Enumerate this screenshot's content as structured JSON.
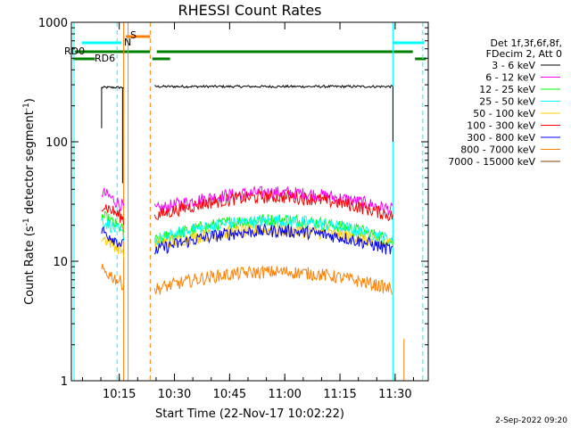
{
  "chart_data": {
    "type": "line",
    "title": "RHESSI Count Rates",
    "xlabel": "Start Time (22-Nov-17 10:02:22)",
    "ylabel_main": "Count Rate (s",
    "ylabel_sup1": "-1",
    "ylabel_mid": " detector segment",
    "ylabel_sup2": "-1",
    "ylabel_end": ")",
    "y_scale": "log",
    "ylim": [
      1,
      1000
    ],
    "xlim_minutes": [
      10.033,
      11.65
    ],
    "x_ticks": [
      {
        "label": "10:15",
        "hours": 10.25
      },
      {
        "label": "10:30",
        "hours": 10.5
      },
      {
        "label": "10:45",
        "hours": 10.75
      },
      {
        "label": "11:00",
        "hours": 11.0
      },
      {
        "label": "11:15",
        "hours": 11.25
      },
      {
        "label": "11:30",
        "hours": 11.5
      }
    ],
    "y_ticks": [
      {
        "label": "1",
        "value": 1
      },
      {
        "label": "10",
        "value": 10
      },
      {
        "label": "100",
        "value": 100
      },
      {
        "label": "1000",
        "value": 1000
      }
    ],
    "legend_header": [
      "Det 1f,3f,6f,8f,",
      "FDecim 2, Att 0"
    ],
    "series": [
      {
        "name": "3 - 6 keV",
        "color": "#000000",
        "segments": [
          [
            10.17,
            10.27,
            285
          ],
          [
            10.41,
            11.49,
            290
          ]
        ],
        "amp": 0.0
      },
      {
        "name": "6 - 12 keV",
        "color": "#ff00ff",
        "segments": [
          [
            10.17,
            10.27,
            38
          ],
          [
            10.41,
            11.49,
            30
          ]
        ],
        "amp": 0.18
      },
      {
        "name": "12 - 25 keV",
        "color": "#00ff00",
        "segments": [
          [
            10.17,
            10.27,
            24
          ],
          [
            10.41,
            11.49,
            17
          ]
        ],
        "amp": 0.22
      },
      {
        "name": "25 - 50 keV",
        "color": "#00ffff",
        "segments": [
          [
            10.17,
            10.27,
            22
          ],
          [
            10.41,
            11.49,
            17
          ]
        ],
        "amp": 0.2
      },
      {
        "name": "50 - 100 keV",
        "color": "#ffcc00",
        "segments": [
          [
            10.17,
            10.27,
            16
          ],
          [
            10.41,
            11.49,
            15
          ]
        ],
        "amp": 0.15
      },
      {
        "name": "100 - 300 keV",
        "color": "#ff0000",
        "segments": [
          [
            10.17,
            10.27,
            30
          ],
          [
            10.41,
            11.49,
            27
          ]
        ],
        "amp": 0.2
      },
      {
        "name": "300 - 800 keV",
        "color": "#0000ff",
        "segments": [
          [
            10.17,
            10.27,
            18
          ],
          [
            10.41,
            11.49,
            14
          ]
        ],
        "amp": 0.2
      },
      {
        "name": "800 - 7000 keV",
        "color": "#ff8000",
        "segments": [
          [
            10.17,
            10.27,
            8.5
          ],
          [
            10.41,
            11.49,
            6.5
          ]
        ],
        "amp": 0.18
      },
      {
        "name": "7000 - 15000 keV",
        "color": "#804000",
        "segments": [],
        "amp": 0.0
      }
    ],
    "flag_labels": {
      "rd0": "RD0",
      "rd6": "RD6",
      "n": "N",
      "s": "S"
    },
    "colors": {
      "rd": "#008000",
      "cyan": "#00ffff",
      "orange": "#ff8000"
    }
  },
  "footer": {
    "date": "2-Sep-2022 09:20"
  }
}
